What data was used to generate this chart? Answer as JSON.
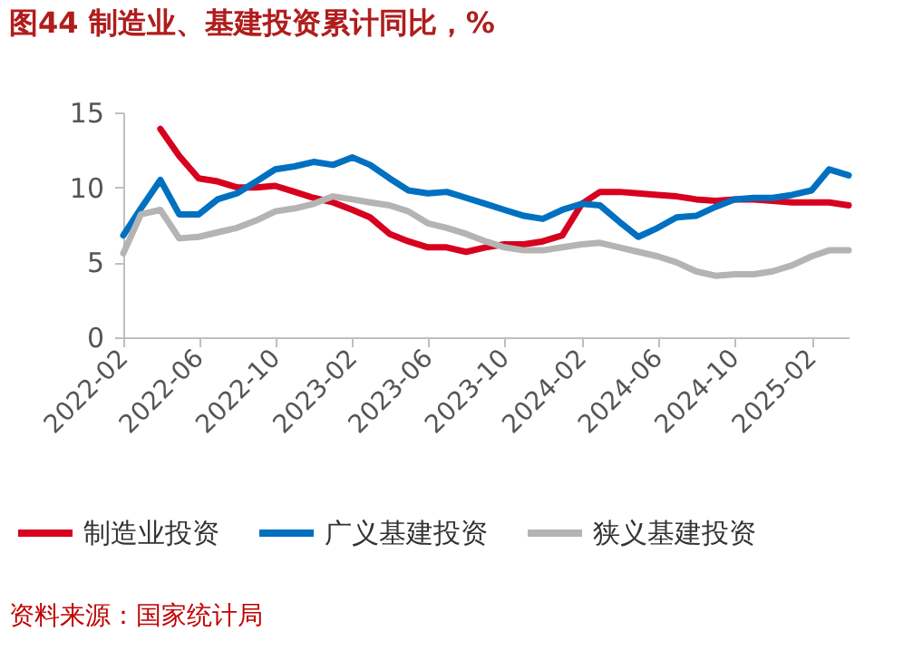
{
  "chart_data": {
    "type": "line",
    "title": "图44  制造业、基建投资累计同比，%",
    "x": [
      "2022-02",
      "2022-03",
      "2022-04",
      "2022-05",
      "2022-06",
      "2022-07",
      "2022-08",
      "2022-09",
      "2022-10",
      "2022-11",
      "2022-12",
      "2023-01",
      "2023-02",
      "2023-03",
      "2023-04",
      "2023-05",
      "2023-06",
      "2023-07",
      "2023-08",
      "2023-09",
      "2023-10",
      "2023-11",
      "2023-12",
      "2024-01",
      "2024-02",
      "2024-03",
      "2024-04",
      "2024-05",
      "2024-06",
      "2024-07",
      "2024-08",
      "2024-09",
      "2024-10",
      "2024-11",
      "2024-12",
      "2025-01",
      "2025-02",
      "2025-03",
      "2025-04"
    ],
    "series": [
      {
        "name": "制造业投资",
        "color": "#d7001e",
        "values": [
          null,
          null,
          13.9,
          12.1,
          10.6,
          10.4,
          10.0,
          10.0,
          10.1,
          9.7,
          9.3,
          9.0,
          8.5,
          8.0,
          6.9,
          6.4,
          6.0,
          6.0,
          5.7,
          6.0,
          6.2,
          6.2,
          6.4,
          6.8,
          8.9,
          9.7,
          9.7,
          9.6,
          9.5,
          9.4,
          9.2,
          9.1,
          9.2,
          9.2,
          9.1,
          9.0,
          9.0,
          9.0,
          8.8
        ]
      },
      {
        "name": "广义基建投资",
        "color": "#0070c0",
        "values": [
          6.8,
          8.6,
          10.5,
          8.2,
          8.2,
          9.2,
          9.6,
          10.4,
          11.2,
          11.4,
          11.7,
          11.5,
          12.0,
          11.5,
          10.6,
          9.8,
          9.6,
          9.7,
          9.3,
          8.9,
          8.5,
          8.1,
          7.9,
          8.5,
          8.9,
          8.8,
          7.7,
          6.7,
          7.3,
          8.0,
          8.1,
          8.7,
          9.2,
          9.3,
          9.3,
          9.5,
          9.8,
          11.2,
          10.8
        ]
      },
      {
        "name": "狭义基建投资",
        "color": "#b4b4b4",
        "values": [
          5.6,
          8.2,
          8.5,
          6.6,
          6.7,
          7.0,
          7.3,
          7.8,
          8.4,
          8.6,
          8.9,
          9.4,
          9.2,
          9.0,
          8.8,
          8.4,
          7.6,
          7.3,
          6.9,
          6.4,
          6.0,
          5.8,
          5.8,
          6.0,
          6.2,
          6.3,
          6.0,
          5.7,
          5.4,
          5.0,
          4.4,
          4.1,
          4.2,
          4.2,
          4.4,
          4.8,
          5.4,
          5.8,
          5.8
        ]
      }
    ],
    "xlim": [
      "2022-02",
      "2025-04"
    ],
    "xticks": [
      "2022-02",
      "2022-06",
      "2022-10",
      "2023-02",
      "2023-06",
      "2023-10",
      "2024-02",
      "2024-06",
      "2024-10",
      "2025-02"
    ],
    "ylim": [
      0,
      15
    ],
    "yticks": [
      0,
      5,
      10,
      15
    ],
    "grid": false,
    "legend": "bottom",
    "annotations": [
      "资料来源：国家统计局"
    ]
  }
}
